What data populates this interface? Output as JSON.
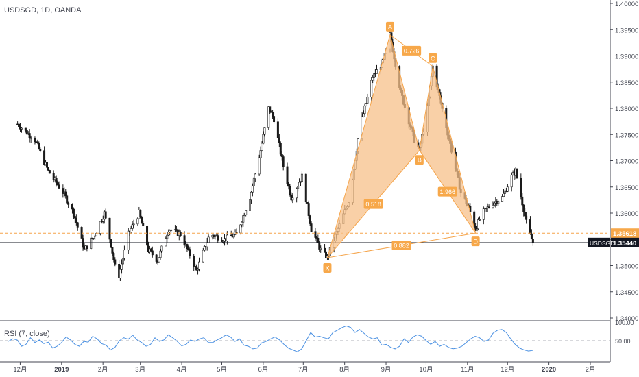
{
  "header": {
    "symbol_line": "USDSGD, 1D, OANDA"
  },
  "rsi_panel": {
    "title": "RSI (7, close)",
    "levels": [
      "100.00",
      "50.00"
    ]
  },
  "colors": {
    "pattern_fill": "#f7c08a",
    "pattern_line": "#f5a44a",
    "label_bg": "#f7a84a",
    "candle": "#1a1a1a",
    "rsi_line": "#4a90e2",
    "axis_text": "#434651",
    "price_tag_bg": "#131722"
  },
  "chart_data": [
    {
      "type": "candlestick",
      "title": "USDSGD, 1D, OANDA",
      "xlabel": "",
      "ylabel": "",
      "ylim": [
        1.34,
        1.4
      ],
      "x_tick_labels": [
        "12月",
        "2019",
        "2月",
        "3月",
        "4月",
        "5月",
        "6月",
        "7月",
        "8月",
        "9月",
        "10月",
        "11月",
        "12月",
        "2020",
        "2月"
      ],
      "y_tick_labels": [
        "1.40000",
        "1.39500",
        "1.39000",
        "1.38500",
        "1.38000",
        "1.37500",
        "1.37000",
        "1.36500",
        "1.36000",
        "1.35500",
        "1.35000",
        "1.34500",
        "1.34000"
      ],
      "price_path": [
        {
          "x": "2018-11-27",
          "y": 1.377
        },
        {
          "x": "2018-12-10",
          "y": 1.374
        },
        {
          "x": "2018-12-20",
          "y": 1.368
        },
        {
          "x": "2018-12-31",
          "y": 1.364
        },
        {
          "x": "2019-01-08",
          "y": 1.36
        },
        {
          "x": "2019-01-16",
          "y": 1.353
        },
        {
          "x": "2019-01-24",
          "y": 1.356
        },
        {
          "x": "2019-01-31",
          "y": 1.36
        },
        {
          "x": "2019-02-05",
          "y": 1.354
        },
        {
          "x": "2019-02-10",
          "y": 1.347
        },
        {
          "x": "2019-02-18",
          "y": 1.356
        },
        {
          "x": "2019-02-26",
          "y": 1.36
        },
        {
          "x": "2019-03-05",
          "y": 1.353
        },
        {
          "x": "2019-03-12",
          "y": 1.351
        },
        {
          "x": "2019-03-20",
          "y": 1.357
        },
        {
          "x": "2019-03-29",
          "y": 1.356
        },
        {
          "x": "2019-04-05",
          "y": 1.352
        },
        {
          "x": "2019-04-10",
          "y": 1.349
        },
        {
          "x": "2019-04-20",
          "y": 1.356
        },
        {
          "x": "2019-05-01",
          "y": 1.355
        },
        {
          "x": "2019-05-10",
          "y": 1.356
        },
        {
          "x": "2019-05-20",
          "y": 1.363
        },
        {
          "x": "2019-05-28",
          "y": 1.372
        },
        {
          "x": "2019-06-03",
          "y": 1.38
        },
        {
          "x": "2019-06-07",
          "y": 1.378
        },
        {
          "x": "2019-06-14",
          "y": 1.369
        },
        {
          "x": "2019-06-20",
          "y": 1.363
        },
        {
          "x": "2019-06-28",
          "y": 1.367
        },
        {
          "x": "2019-07-05",
          "y": 1.357
        },
        {
          "x": "2019-07-12",
          "y": 1.353
        },
        {
          "x": "2019-07-17",
          "y": 1.3515
        },
        {
          "x": "2019-07-25",
          "y": 1.357
        },
        {
          "x": "2019-08-03",
          "y": 1.363
        },
        {
          "x": "2019-08-10",
          "y": 1.376
        },
        {
          "x": "2019-08-20",
          "y": 1.386
        },
        {
          "x": "2019-08-28",
          "y": 1.389
        },
        {
          "x": "2019-09-02",
          "y": 1.394
        },
        {
          "x": "2019-09-10",
          "y": 1.383
        },
        {
          "x": "2019-09-20",
          "y": 1.374
        },
        {
          "x": "2019-09-24",
          "y": 1.372
        },
        {
          "x": "2019-09-30",
          "y": 1.38
        },
        {
          "x": "2019-10-04",
          "y": 1.388
        },
        {
          "x": "2019-10-10",
          "y": 1.381
        },
        {
          "x": "2019-10-18",
          "y": 1.372
        },
        {
          "x": "2019-10-25",
          "y": 1.364
        },
        {
          "x": "2019-10-31",
          "y": 1.361
        },
        {
          "x": "2019-11-05",
          "y": 1.357
        },
        {
          "x": "2019-11-10",
          "y": 1.36
        },
        {
          "x": "2019-11-18",
          "y": 1.362
        },
        {
          "x": "2019-11-25",
          "y": 1.363
        },
        {
          "x": "2019-12-02",
          "y": 1.367
        },
        {
          "x": "2019-12-05",
          "y": 1.368
        },
        {
          "x": "2019-12-10",
          "y": 1.362
        },
        {
          "x": "2019-12-14",
          "y": 1.357
        },
        {
          "x": "2019-12-18",
          "y": 1.3544
        }
      ],
      "harmonic_pattern": {
        "points": [
          {
            "label": "X",
            "x": "2019-07-17",
            "y": 1.3515
          },
          {
            "label": "A",
            "x": "2019-09-02",
            "y": 1.394
          },
          {
            "label": "B",
            "x": "2019-09-24",
            "y": 1.372
          },
          {
            "label": "C",
            "x": "2019-10-04",
            "y": 1.388
          },
          {
            "label": "D",
            "x": "2019-11-05",
            "y": 1.3562
          }
        ],
        "ratios": [
          {
            "value": "0.518",
            "between": "XB"
          },
          {
            "value": "0.726",
            "between": "AC"
          },
          {
            "value": "1.966",
            "between": "BD"
          },
          {
            "value": "0.882",
            "between": "XD"
          }
        ]
      },
      "reference_line": {
        "value": 1.35618,
        "label": "1.35618"
      },
      "last_price": {
        "value": 1.3544,
        "label": "1.35440",
        "symbol": "USDSGD"
      }
    },
    {
      "type": "line",
      "title": "RSI (7, close)",
      "ylim": [
        0,
        100
      ],
      "levels": [
        50
      ],
      "series": [
        {
          "name": "RSI",
          "values": [
            48,
            55,
            52,
            35,
            40,
            58,
            45,
            52,
            42,
            46,
            30,
            35,
            45,
            60,
            52,
            40,
            35,
            48,
            46,
            62,
            55,
            42,
            38,
            25,
            32,
            50,
            58,
            54,
            65,
            52,
            45,
            35,
            40,
            58,
            48,
            52,
            66,
            58,
            48,
            36,
            40,
            52,
            48,
            55,
            58,
            45,
            45,
            52,
            58,
            66,
            60,
            48,
            55,
            38,
            35,
            28,
            30,
            44,
            48,
            55,
            60,
            52,
            40,
            30,
            25,
            20,
            28,
            50,
            72,
            60,
            62,
            58,
            55,
            72,
            78,
            85,
            90,
            86,
            72,
            80,
            70,
            60,
            55,
            58,
            38,
            40,
            32,
            28,
            35,
            55,
            45,
            60,
            66,
            62,
            50,
            40,
            48,
            35,
            40,
            32,
            28,
            30,
            35,
            45,
            55,
            62,
            58,
            48,
            52,
            70,
            78,
            80,
            72,
            55,
            40,
            30,
            25,
            22,
            24
          ]
        }
      ]
    }
  ]
}
